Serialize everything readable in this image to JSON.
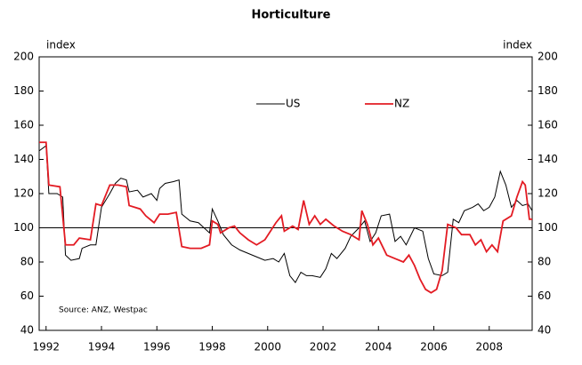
{
  "chart_data": {
    "type": "line",
    "title": "Horticulture",
    "y_label": "index",
    "y2_label": "index",
    "source": "Source:  ANZ, Westpac",
    "xlim": [
      1991.75,
      2009.55
    ],
    "xticks": [
      1992,
      1994,
      1996,
      1998,
      2000,
      2002,
      2004,
      2006,
      2008
    ],
    "ylim": [
      40,
      200
    ],
    "yticks": [
      40,
      60,
      80,
      100,
      120,
      140,
      160,
      180,
      200
    ],
    "y2lim": [
      40,
      200
    ],
    "y2ticks": [
      40,
      60,
      80,
      100,
      120,
      140,
      160,
      180,
      200
    ],
    "reference_line": 100,
    "legend": "top",
    "series": [
      {
        "name": "US",
        "color": "#000000",
        "x": [
          1991.75,
          1992.0,
          1992.1,
          1992.4,
          1992.6,
          1992.7,
          1992.9,
          1993.2,
          1993.3,
          1993.6,
          1993.8,
          1994.0,
          1994.3,
          1994.5,
          1994.7,
          1994.9,
          1995.0,
          1995.3,
          1995.5,
          1995.8,
          1996.0,
          1996.1,
          1996.3,
          1996.6,
          1996.8,
          1996.9,
          1997.2,
          1997.5,
          1997.7,
          1997.9,
          1998.0,
          1998.2,
          1998.4,
          1998.7,
          1999.0,
          1999.3,
          1999.6,
          1999.9,
          2000.2,
          2000.4,
          2000.6,
          2000.8,
          2001.0,
          2001.2,
          2001.4,
          2001.6,
          2001.9,
          2002.1,
          2002.3,
          2002.5,
          2002.8,
          2003.0,
          2003.3,
          2003.5,
          2003.7,
          2003.9,
          2004.1,
          2004.4,
          2004.6,
          2004.8,
          2005.0,
          2005.3,
          2005.6,
          2005.8,
          2006.0,
          2006.3,
          2006.5,
          2006.7,
          2006.9,
          2007.1,
          2007.4,
          2007.6,
          2007.8,
          2008.0,
          2008.2,
          2008.4,
          2008.6,
          2008.8,
          2009.0,
          2009.2,
          2009.4,
          2009.55
        ],
        "values": [
          145,
          148,
          120,
          120,
          118,
          84,
          81,
          82,
          88,
          90,
          90,
          112,
          120,
          126,
          129,
          128,
          121,
          122,
          118,
          120,
          116,
          123,
          126,
          127,
          128,
          108,
          104,
          103,
          100,
          97,
          111,
          104,
          96,
          90,
          87,
          85,
          83,
          81,
          82,
          80,
          85,
          72,
          68,
          74,
          72,
          72,
          71,
          76,
          85,
          82,
          88,
          95,
          100,
          104,
          92,
          97,
          107,
          108,
          92,
          95,
          90,
          100,
          98,
          82,
          73,
          72,
          74,
          105,
          103,
          110,
          112,
          114,
          110,
          112,
          118,
          133,
          125,
          112,
          116,
          113,
          114,
          110
        ]
      },
      {
        "name": "NZ",
        "color": "#e31b23",
        "x": [
          1991.75,
          1992.0,
          1992.1,
          1992.5,
          1992.7,
          1993.0,
          1993.2,
          1993.6,
          1993.8,
          1994.0,
          1994.3,
          1994.6,
          1994.9,
          1995.0,
          1995.4,
          1995.6,
          1995.9,
          1996.1,
          1996.4,
          1996.7,
          1996.9,
          1997.2,
          1997.6,
          1997.9,
          1998.0,
          1998.2,
          1998.3,
          1998.6,
          1998.8,
          1999.0,
          1999.3,
          1999.6,
          1999.9,
          2000.1,
          2000.3,
          2000.5,
          2000.6,
          2000.9,
          2001.1,
          2001.3,
          2001.5,
          2001.7,
          2001.9,
          2002.1,
          2002.4,
          2002.7,
          2003.0,
          2003.3,
          2003.4,
          2003.6,
          2003.8,
          2004.0,
          2004.3,
          2004.6,
          2004.9,
          2005.1,
          2005.3,
          2005.5,
          2005.7,
          2005.9,
          2006.1,
          2006.3,
          2006.5,
          2006.8,
          2007.0,
          2007.3,
          2007.5,
          2007.7,
          2007.9,
          2008.1,
          2008.3,
          2008.5,
          2008.8,
          2009.0,
          2009.2,
          2009.3,
          2009.45,
          2009.55
        ],
        "values": [
          150,
          150,
          125,
          124,
          90,
          90,
          94,
          93,
          114,
          113,
          125,
          125,
          124,
          113,
          111,
          107,
          103,
          108,
          108,
          109,
          89,
          88,
          88,
          90,
          104,
          102,
          97,
          100,
          101,
          97,
          93,
          90,
          93,
          98,
          103,
          107,
          98,
          101,
          99,
          116,
          102,
          107,
          102,
          105,
          101,
          98,
          96,
          93,
          110,
          102,
          90,
          94,
          84,
          82,
          80,
          84,
          78,
          70,
          64,
          62,
          64,
          75,
          102,
          100,
          96,
          96,
          90,
          93,
          86,
          90,
          86,
          104,
          107,
          118,
          127,
          125,
          105,
          105
        ]
      }
    ]
  }
}
